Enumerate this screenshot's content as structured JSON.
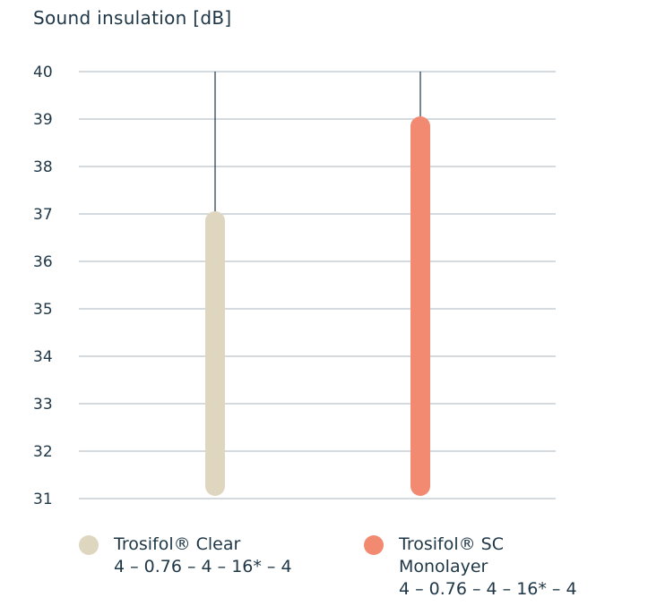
{
  "chart_data": {
    "type": "bar",
    "title": "Sound insulation [dB]",
    "ylim": [
      31,
      40
    ],
    "yticks": [
      40,
      39,
      38,
      37,
      36,
      35,
      34,
      33,
      32,
      31
    ],
    "grid": true,
    "legend_position": "bottom",
    "series": [
      {
        "name": "Trosifol® Clear",
        "name_line2": "4 – 0.76 – 4 – 16* – 4",
        "value": 37,
        "color": "#dfd6c0"
      },
      {
        "name": "Trosifol® SC",
        "name_line2": "Monolayer",
        "name_line3": "4 – 0.76 – 4 – 16* – 4",
        "value": 39,
        "color": "#f28a72"
      }
    ],
    "gridline_color": "#a9b4bb",
    "whisker_color": "#1e3646"
  }
}
